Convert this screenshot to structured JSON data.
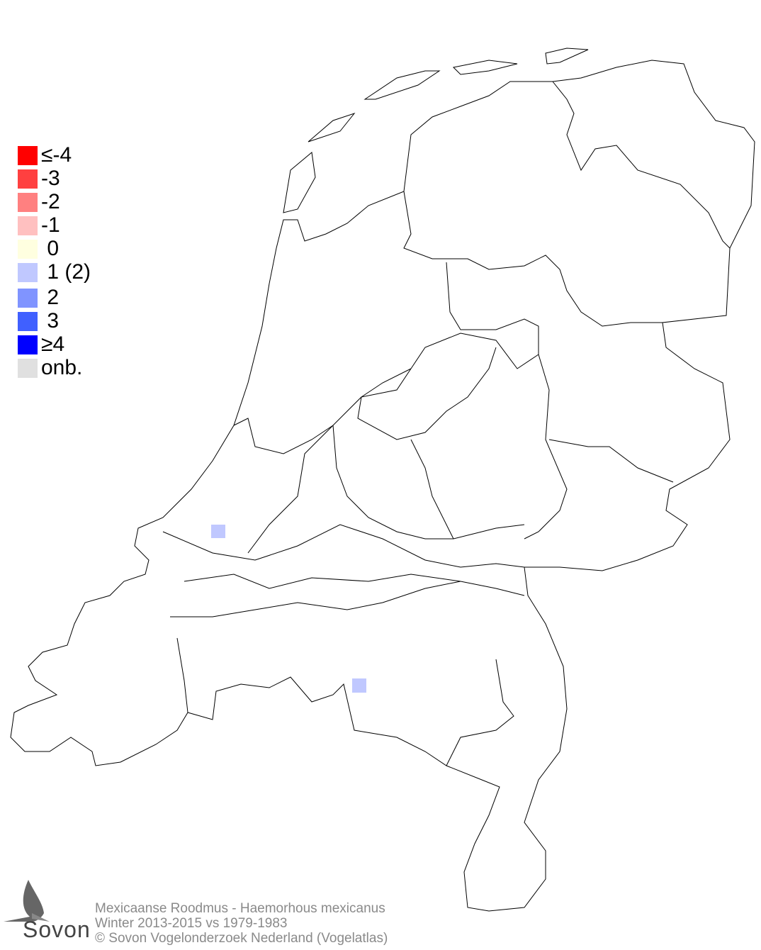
{
  "legend": {
    "items": [
      {
        "label": "≤-4",
        "color": "#ff0000"
      },
      {
        "label": "-3",
        "color": "#ff4040"
      },
      {
        "label": "-2",
        "color": "#ff8080"
      },
      {
        "label": "-1",
        "color": "#ffc0c0"
      },
      {
        "label": " 0",
        "color": "#ffffe0"
      },
      {
        "label": " 1 (2)",
        "color": "#c0c8ff"
      },
      {
        "label": " 2",
        "color": "#8094ff"
      },
      {
        "label": " 3",
        "color": "#4060ff"
      },
      {
        "label": "≥4",
        "color": "#0000ff"
      },
      {
        "label": "onb.",
        "color": "#e0e0e0"
      }
    ]
  },
  "map": {
    "outline_color": "#000000",
    "cells": [
      {
        "value": 1,
        "color": "#c0c8ff",
        "region": "Zuid-Holland"
      },
      {
        "value": 1,
        "color": "#c0c8ff",
        "region": "Noord-Brabant"
      }
    ]
  },
  "footer": {
    "species": "Mexicaanse Roodmus - Haemorhous mexicanus",
    "period": "Winter 2013-2015 vs 1979-1983",
    "copyright": "© Sovon Vogelonderzoek Nederland (Vogelatlas)"
  },
  "logo": {
    "text": "Sovon",
    "icon": "swallow-icon"
  }
}
